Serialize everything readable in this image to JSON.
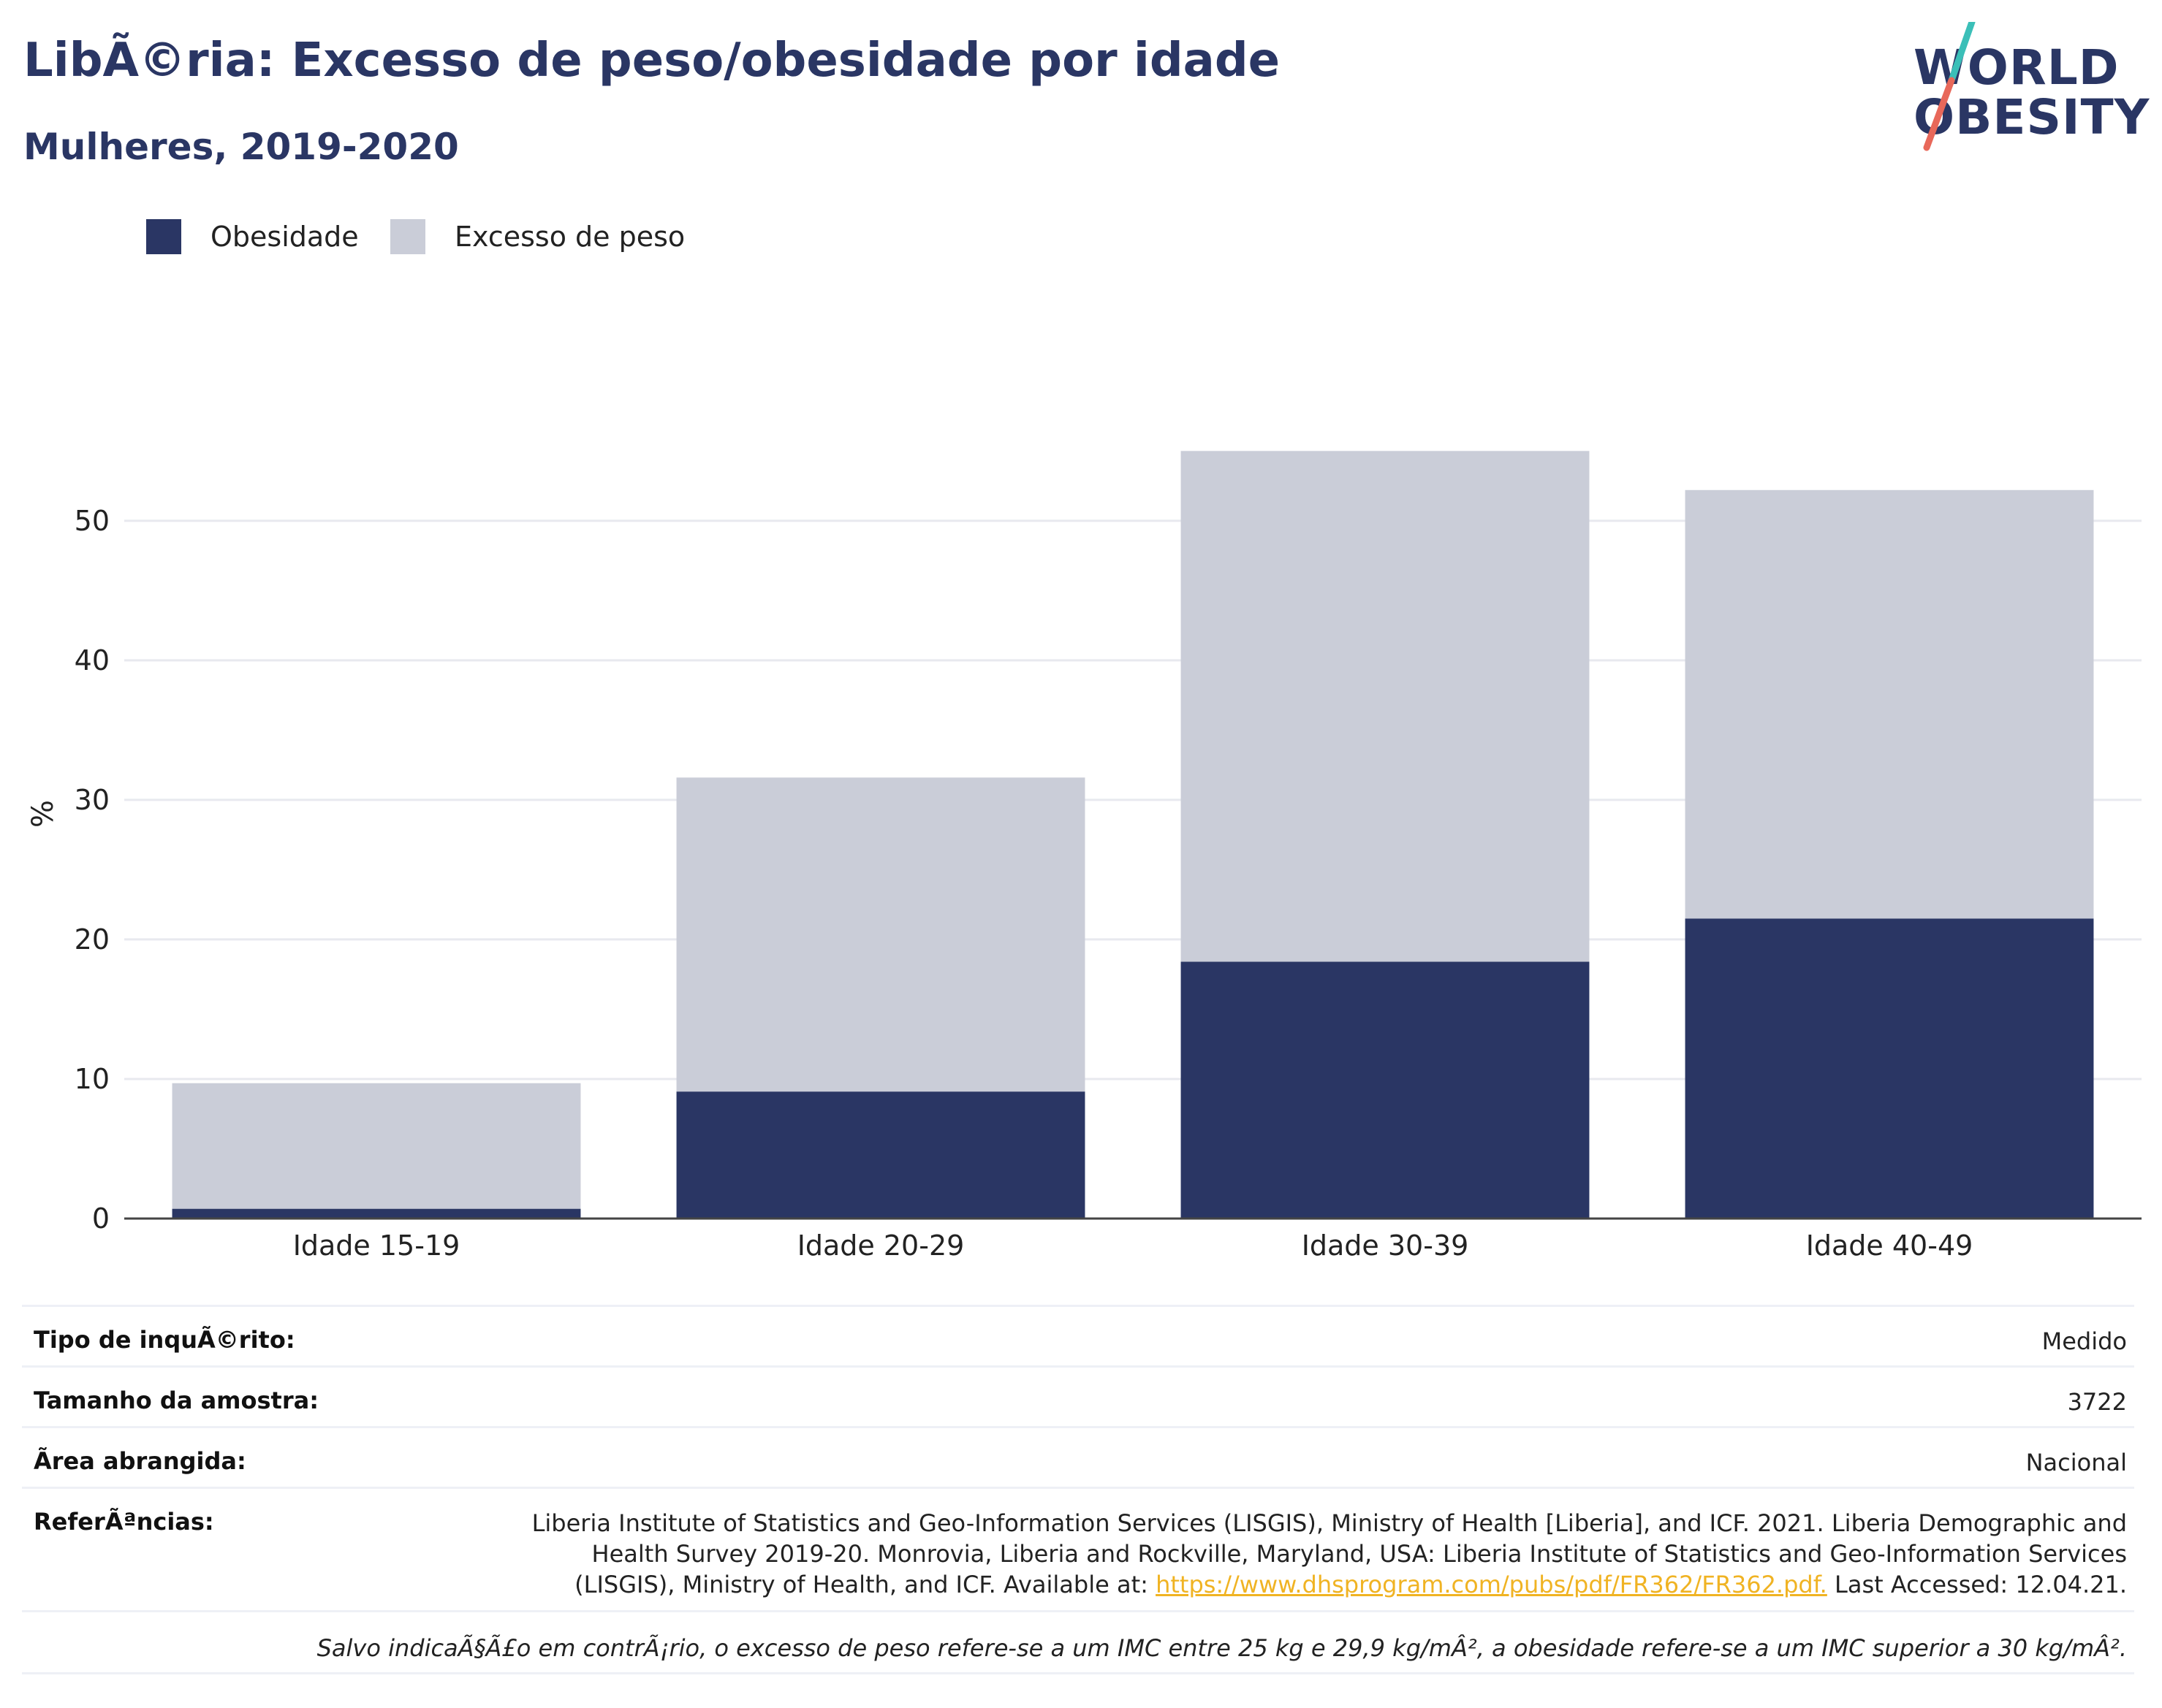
{
  "header": {
    "title": "LibÃ©ria: Excesso de peso/obesidade por idade",
    "subtitle": "Mulheres, 2019-2020"
  },
  "logo": {
    "line1": "WORLD",
    "line2": "OBESITY",
    "accent_teal": "#3bbfb8",
    "accent_red": "#e8685a"
  },
  "colors": {
    "obesity": "#2a3664",
    "overweight": "#cacdd8",
    "grid": "#e8e9ef",
    "axis": "#444444"
  },
  "chart_data": {
    "type": "bar",
    "stacked": true,
    "categories": [
      "Idade 15-19",
      "Idade 20-29",
      "Idade 30-39",
      "Idade 40-49"
    ],
    "series": [
      {
        "name": "Obesidade",
        "color": "#2a3664",
        "values": [
          0.7,
          9.1,
          18.4,
          21.5
        ]
      },
      {
        "name": "Excesso de peso",
        "color": "#cacdd8",
        "values": [
          9.0,
          22.5,
          36.6,
          30.7
        ]
      }
    ],
    "ylabel": "%",
    "yticks": [
      0,
      10,
      20,
      30,
      40,
      50
    ],
    "ylim": [
      0,
      58
    ],
    "grid": true,
    "legend_position": "top-left"
  },
  "info": {
    "survey_type_label": "Tipo de inquÃ©rito:",
    "survey_type_value": "Medido",
    "sample_size_label": "Tamanho da amostra:",
    "sample_size_value": "3722",
    "area_label": "Ã\u001frea abrangida:",
    "area_value": "Nacional",
    "references_label": "ReferÃªncias:",
    "references_text": "Liberia Institute of Statistics and Geo-Information Services (LISGIS), Ministry of Health [Liberia], and ICF. 2021. Liberia Demographic and Health Survey 2019-20. Monrovia, Liberia and Rockville, Maryland, USA: Liberia Institute of Statistics and Geo-Information Services (LISGIS), Ministry of Health, and ICF. Available at: ",
    "references_link": "https://www.dhsprogram.com/pubs/pdf/FR362/FR362.pdf.",
    "references_suffix": " Last Accessed: 12.04.21.",
    "note": "Salvo indicaÃ§Ã£o em contrÃ¡rio, o excesso de peso refere-se a um IMC entre 25 kg e 29,9 kg/mÂ², a obesidade refere-se a um IMC superior a 30 kg/mÂ²."
  }
}
